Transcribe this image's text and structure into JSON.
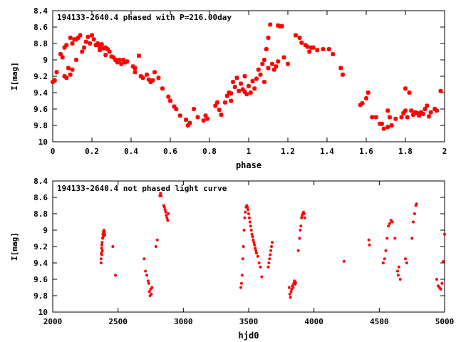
{
  "chart_data": [
    {
      "type": "scatter",
      "title": "194133-2640.4 phased with P=216.00day",
      "xlabel": "phase",
      "ylabel": "I[mag]",
      "xlim": [
        0,
        2
      ],
      "ylim": [
        10,
        8.4
      ],
      "y_inverted": true,
      "grid": false,
      "x_ticks": [
        "0",
        "0.2",
        "0.4",
        "0.6",
        "0.8",
        "1",
        "1.2",
        "1.4",
        "1.6",
        "1.8",
        "2"
      ],
      "y_ticks": [
        "8.4",
        "8.6",
        "8.8",
        "9",
        "9.2",
        "9.4",
        "9.6",
        "9.8",
        "10"
      ],
      "marker_color": "#ff0000",
      "points": [
        [
          0.0,
          9.27
        ],
        [
          0.01,
          9.25
        ],
        [
          0.02,
          9.15
        ],
        [
          0.04,
          8.93
        ],
        [
          0.05,
          8.97
        ],
        [
          0.06,
          8.85
        ],
        [
          0.06,
          9.2
        ],
        [
          0.07,
          9.22
        ],
        [
          0.07,
          8.82
        ],
        [
          0.08,
          9.1
        ],
        [
          0.09,
          9.18
        ],
        [
          0.09,
          8.73
        ],
        [
          0.1,
          9.12
        ],
        [
          0.1,
          8.8
        ],
        [
          0.11,
          8.75
        ],
        [
          0.12,
          8.75
        ],
        [
          0.12,
          9.0
        ],
        [
          0.13,
          8.73
        ],
        [
          0.14,
          8.7
        ],
        [
          0.15,
          8.9
        ],
        [
          0.16,
          8.85
        ],
        [
          0.17,
          8.78
        ],
        [
          0.18,
          8.72
        ],
        [
          0.19,
          8.8
        ],
        [
          0.2,
          8.7
        ],
        [
          0.21,
          8.75
        ],
        [
          0.22,
          8.82
        ],
        [
          0.23,
          8.8
        ],
        [
          0.24,
          8.84
        ],
        [
          0.24,
          8.88
        ],
        [
          0.25,
          8.81
        ],
        [
          0.26,
          8.86
        ],
        [
          0.27,
          8.85
        ],
        [
          0.27,
          8.94
        ],
        [
          0.28,
          8.87
        ],
        [
          0.29,
          8.9
        ],
        [
          0.3,
          8.96
        ],
        [
          0.31,
          8.97
        ],
        [
          0.32,
          9.0
        ],
        [
          0.33,
          9.03
        ],
        [
          0.34,
          9.0
        ],
        [
          0.35,
          9.05
        ],
        [
          0.36,
          9.0
        ],
        [
          0.37,
          9.03
        ],
        [
          0.38,
          9.02
        ],
        [
          0.41,
          9.08
        ],
        [
          0.42,
          9.1
        ],
        [
          0.42,
          9.15
        ],
        [
          0.44,
          8.95
        ],
        [
          0.45,
          9.2
        ],
        [
          0.46,
          9.22
        ],
        [
          0.48,
          9.18
        ],
        [
          0.49,
          9.24
        ],
        [
          0.5,
          9.27
        ],
        [
          0.51,
          9.25
        ],
        [
          0.52,
          9.15
        ],
        [
          0.54,
          9.22
        ],
        [
          0.56,
          9.35
        ],
        [
          0.59,
          9.45
        ],
        [
          0.6,
          9.5
        ],
        [
          0.62,
          9.57
        ],
        [
          0.63,
          9.6
        ],
        [
          0.65,
          9.68
        ],
        [
          0.68,
          9.73
        ],
        [
          0.69,
          9.8
        ],
        [
          0.7,
          9.77
        ],
        [
          0.72,
          9.6
        ],
        [
          0.74,
          9.7
        ],
        [
          0.77,
          9.74
        ],
        [
          0.78,
          9.68
        ],
        [
          0.79,
          9.72
        ],
        [
          0.83,
          9.56
        ],
        [
          0.84,
          9.52
        ],
        [
          0.85,
          9.61
        ],
        [
          0.86,
          9.67
        ],
        [
          0.88,
          9.52
        ],
        [
          0.89,
          9.44
        ],
        [
          0.9,
          9.4
        ],
        [
          0.91,
          9.41
        ],
        [
          0.91,
          9.5
        ],
        [
          0.92,
          9.27
        ],
        [
          0.93,
          9.33
        ],
        [
          0.94,
          9.22
        ],
        [
          0.95,
          9.38
        ],
        [
          0.96,
          9.29
        ],
        [
          0.97,
          9.36
        ],
        [
          0.98,
          9.39
        ],
        [
          0.98,
          9.2
        ],
        [
          0.99,
          9.42
        ],
        [
          1.0,
          9.32
        ],
        [
          1.01,
          9.4
        ],
        [
          1.02,
          9.26
        ],
        [
          1.03,
          9.35
        ],
        [
          1.04,
          9.23
        ],
        [
          1.05,
          9.12
        ],
        [
          1.06,
          9.18
        ],
        [
          1.07,
          9.05
        ],
        [
          1.08,
          9.27
        ],
        [
          1.08,
          9.0
        ],
        [
          1.09,
          8.87
        ],
        [
          1.1,
          8.73
        ],
        [
          1.1,
          9.1
        ],
        [
          1.11,
          8.57
        ],
        [
          1.12,
          9.05
        ],
        [
          1.13,
          9.12
        ],
        [
          1.14,
          9.08
        ],
        [
          1.15,
          9.02
        ],
        [
          1.15,
          8.58
        ],
        [
          1.16,
          8.59
        ],
        [
          1.17,
          8.59
        ],
        [
          1.18,
          8.97
        ],
        [
          1.2,
          9.05
        ],
        [
          1.24,
          8.7
        ],
        [
          1.26,
          8.73
        ],
        [
          1.27,
          8.79
        ],
        [
          1.29,
          8.82
        ],
        [
          1.3,
          8.84
        ],
        [
          1.31,
          8.9
        ],
        [
          1.32,
          8.85
        ],
        [
          1.33,
          8.85
        ],
        [
          1.35,
          8.88
        ],
        [
          1.38,
          8.87
        ],
        [
          1.41,
          8.87
        ],
        [
          1.43,
          8.93
        ],
        [
          1.47,
          9.1
        ],
        [
          1.48,
          9.18
        ],
        [
          1.57,
          9.55
        ],
        [
          1.58,
          9.53
        ],
        [
          1.6,
          9.47
        ],
        [
          1.61,
          9.4
        ],
        [
          1.63,
          9.7
        ],
        [
          1.65,
          9.7
        ],
        [
          1.67,
          9.78
        ],
        [
          1.68,
          9.78
        ],
        [
          1.69,
          9.84
        ],
        [
          1.71,
          9.82
        ],
        [
          1.71,
          9.62
        ],
        [
          1.72,
          9.7
        ],
        [
          1.73,
          9.8
        ],
        [
          1.75,
          9.72
        ],
        [
          1.78,
          9.7
        ],
        [
          1.79,
          9.65
        ],
        [
          1.8,
          9.62
        ],
        [
          1.8,
          9.35
        ],
        [
          1.81,
          9.7
        ],
        [
          1.82,
          9.4
        ],
        [
          1.83,
          9.62
        ],
        [
          1.84,
          9.67
        ],
        [
          1.85,
          9.64
        ],
        [
          1.86,
          9.65
        ],
        [
          1.87,
          9.68
        ],
        [
          1.88,
          9.64
        ],
        [
          1.89,
          9.66
        ],
        [
          1.9,
          9.6
        ],
        [
          1.91,
          9.56
        ],
        [
          1.92,
          9.69
        ],
        [
          1.93,
          9.64
        ],
        [
          1.95,
          9.6
        ],
        [
          1.96,
          9.62
        ],
        [
          1.98,
          9.38
        ]
      ]
    },
    {
      "type": "scatter",
      "title": "194133-2640.4 not phased light curve",
      "xlabel": "hjd0",
      "ylabel": "I[mag]",
      "xlim": [
        2000,
        5000
      ],
      "ylim": [
        10,
        8.4
      ],
      "y_inverted": true,
      "grid": false,
      "x_ticks": [
        "2000",
        "2500",
        "3000",
        "3500",
        "4000",
        "4500",
        "5000"
      ],
      "y_ticks": [
        "8.4",
        "8.6",
        "8.8",
        "9",
        "9.2",
        "9.4",
        "9.6",
        "9.8",
        "10"
      ],
      "marker_color": "#ff0000",
      "points": [
        [
          2370,
          9.4
        ],
        [
          2372,
          9.28
        ],
        [
          2374,
          9.22
        ],
        [
          2376,
          9.18
        ],
        [
          2378,
          9.15
        ],
        [
          2380,
          9.25
        ],
        [
          2382,
          9.1
        ],
        [
          2384,
          9.05
        ],
        [
          2386,
          9.08
        ],
        [
          2388,
          9.02
        ],
        [
          2390,
          9.05
        ],
        [
          2392,
          9.0
        ],
        [
          2394,
          9.04
        ],
        [
          2396,
          9.02
        ],
        [
          2398,
          9.06
        ],
        [
          2370,
          9.35
        ],
        [
          2375,
          9.3
        ],
        [
          2460,
          9.2
        ],
        [
          2480,
          9.55
        ],
        [
          2700,
          9.35
        ],
        [
          2710,
          9.5
        ],
        [
          2720,
          9.55
        ],
        [
          2730,
          9.62
        ],
        [
          2735,
          9.65
        ],
        [
          2740,
          9.75
        ],
        [
          2745,
          9.8
        ],
        [
          2750,
          9.72
        ],
        [
          2755,
          9.78
        ],
        [
          2760,
          9.7
        ],
        [
          2790,
          9.2
        ],
        [
          2800,
          9.12
        ],
        [
          2820,
          8.58
        ],
        [
          2825,
          8.55
        ],
        [
          2830,
          8.58
        ],
        [
          2850,
          8.7
        ],
        [
          2855,
          8.72
        ],
        [
          2860,
          8.75
        ],
        [
          2865,
          8.78
        ],
        [
          2870,
          8.82
        ],
        [
          2875,
          8.85
        ],
        [
          2880,
          8.88
        ],
        [
          2885,
          8.8
        ],
        [
          3440,
          9.7
        ],
        [
          3445,
          9.65
        ],
        [
          3450,
          9.55
        ],
        [
          3455,
          9.35
        ],
        [
          3460,
          9.2
        ],
        [
          3465,
          9.0
        ],
        [
          3470,
          8.85
        ],
        [
          3475,
          8.78
        ],
        [
          3480,
          8.72
        ],
        [
          3485,
          8.7
        ],
        [
          3490,
          8.72
        ],
        [
          3495,
          8.75
        ],
        [
          3500,
          8.8
        ],
        [
          3505,
          8.85
        ],
        [
          3510,
          8.9
        ],
        [
          3515,
          8.95
        ],
        [
          3520,
          9.0
        ],
        [
          3525,
          9.05
        ],
        [
          3530,
          9.08
        ],
        [
          3535,
          9.12
        ],
        [
          3540,
          9.15
        ],
        [
          3545,
          9.18
        ],
        [
          3550,
          9.22
        ],
        [
          3555,
          9.25
        ],
        [
          3560,
          9.28
        ],
        [
          3570,
          9.32
        ],
        [
          3580,
          9.4
        ],
        [
          3590,
          9.45
        ],
        [
          3600,
          9.57
        ],
        [
          3650,
          9.45
        ],
        [
          3655,
          9.4
        ],
        [
          3660,
          9.35
        ],
        [
          3665,
          9.3
        ],
        [
          3670,
          9.25
        ],
        [
          3675,
          9.2
        ],
        [
          3680,
          9.15
        ],
        [
          3810,
          9.7
        ],
        [
          3815,
          9.78
        ],
        [
          3820,
          9.82
        ],
        [
          3825,
          9.75
        ],
        [
          3830,
          9.72
        ],
        [
          3835,
          9.68
        ],
        [
          3840,
          9.7
        ],
        [
          3845,
          9.65
        ],
        [
          3850,
          9.62
        ],
        [
          3855,
          9.66
        ],
        [
          3860,
          9.64
        ],
        [
          3880,
          9.25
        ],
        [
          3890,
          9.1
        ],
        [
          3895,
          9.0
        ],
        [
          3900,
          8.95
        ],
        [
          3905,
          8.85
        ],
        [
          3910,
          8.82
        ],
        [
          3915,
          8.8
        ],
        [
          3920,
          8.78
        ],
        [
          3925,
          8.8
        ],
        [
          3930,
          8.85
        ],
        [
          4230,
          9.38
        ],
        [
          4420,
          9.12
        ],
        [
          4425,
          9.18
        ],
        [
          4530,
          9.4
        ],
        [
          4540,
          9.35
        ],
        [
          4550,
          9.25
        ],
        [
          4560,
          9.1
        ],
        [
          4570,
          8.95
        ],
        [
          4580,
          8.92
        ],
        [
          4590,
          8.88
        ],
        [
          4600,
          8.9
        ],
        [
          4620,
          9.1
        ],
        [
          4640,
          9.5
        ],
        [
          4645,
          9.55
        ],
        [
          4650,
          9.45
        ],
        [
          4660,
          9.6
        ],
        [
          4700,
          9.35
        ],
        [
          4710,
          9.4
        ],
        [
          4750,
          9.1
        ],
        [
          4760,
          8.9
        ],
        [
          4770,
          8.8
        ],
        [
          4780,
          8.7
        ],
        [
          4785,
          8.68
        ],
        [
          4940,
          9.6
        ],
        [
          4950,
          9.68
        ],
        [
          4960,
          9.7
        ],
        [
          4970,
          9.72
        ],
        [
          4980,
          9.65
        ],
        [
          4990,
          9.38
        ],
        [
          5000,
          9.05
        ]
      ]
    }
  ]
}
